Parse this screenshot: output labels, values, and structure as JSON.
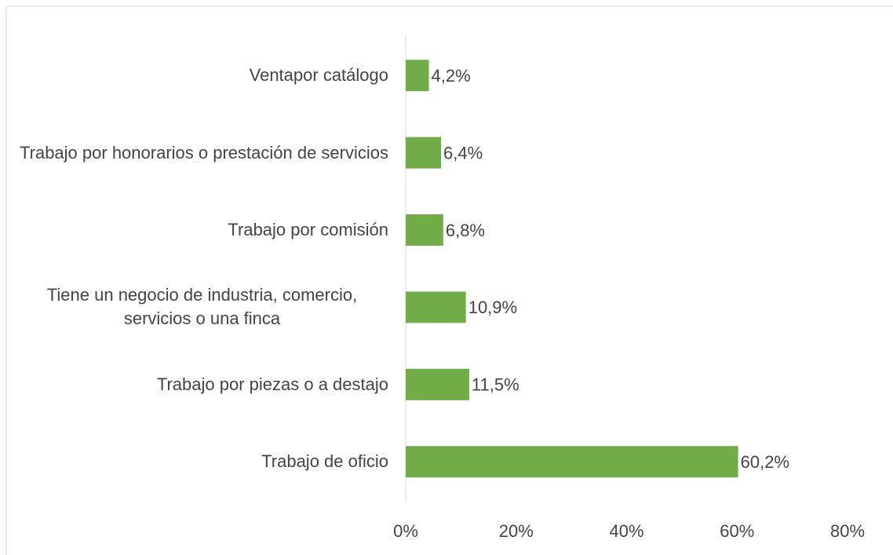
{
  "chart_data": {
    "type": "bar",
    "orientation": "horizontal",
    "categories": [
      "Ventapor catálogo",
      "Trabajo por honorarios o prestación de servicios",
      "Trabajo por comisión",
      "Tiene un negocio de industria, comercio, servicios o una finca",
      "Trabajo por piezas o a destajo",
      "Trabajo de oficio"
    ],
    "values": [
      4.2,
      6.4,
      6.8,
      10.9,
      11.5,
      60.2
    ],
    "value_labels": [
      "4,2%",
      "6,4%",
      "6,8%",
      "10,9%",
      "11,5%",
      "60,2%"
    ],
    "color": "#70ad47",
    "xlim": [
      0,
      80
    ],
    "xticks": [
      {
        "value": 0,
        "label": "0%"
      },
      {
        "value": 20,
        "label": "20%"
      },
      {
        "value": 40,
        "label": "40%"
      },
      {
        "value": 60,
        "label": "60%"
      },
      {
        "value": 80,
        "label": "80%"
      }
    ],
    "grid": false
  }
}
